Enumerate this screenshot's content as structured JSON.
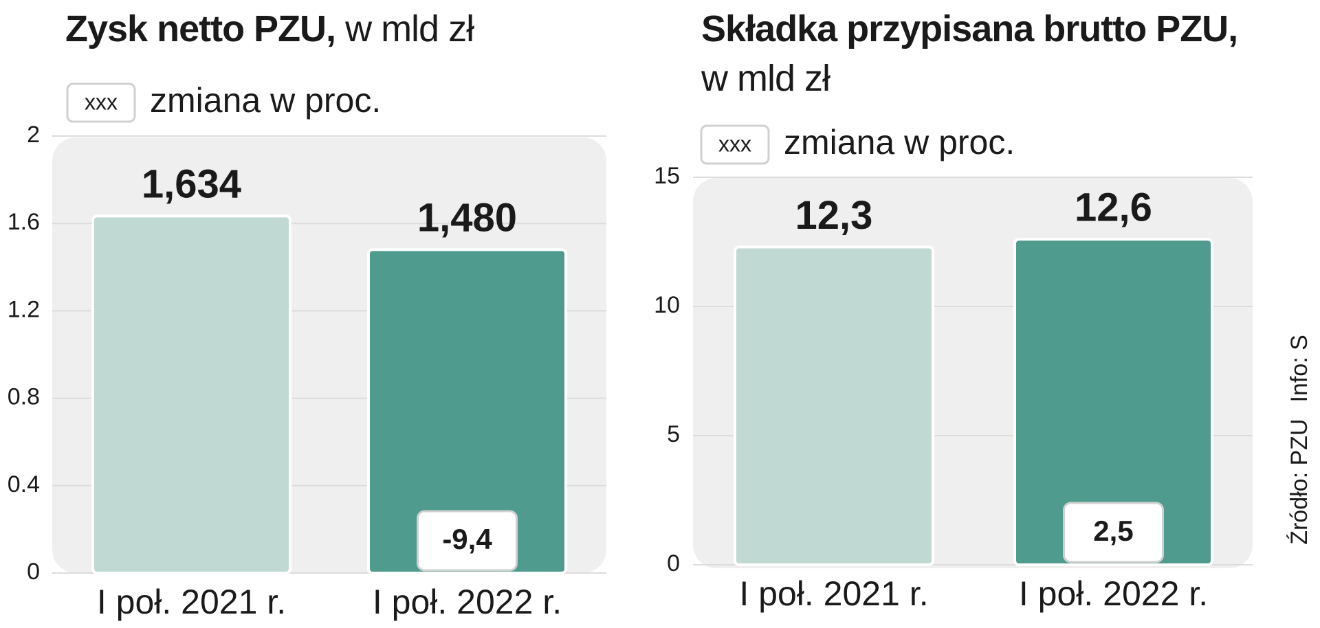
{
  "chart_data": [
    {
      "type": "bar",
      "title": "Zysk netto PZU,",
      "unit": "w mld zł",
      "legend_box": "xxx",
      "legend_label": "zmiana w proc.",
      "categories": [
        "I poł. 2021 r.",
        "I poł. 2022 r."
      ],
      "values": [
        1.634,
        1.48
      ],
      "value_labels": [
        "1,634",
        "1,480"
      ],
      "changes": [
        null,
        -9.4
      ],
      "change_labels": [
        null,
        "-9,4"
      ],
      "colors": [
        "#c0d9d2",
        "#4f9b8e"
      ],
      "ylim": [
        0,
        2
      ],
      "yticks": [
        0,
        0.4,
        0.8,
        1.2,
        1.6,
        2
      ],
      "grid": true
    },
    {
      "type": "bar",
      "title": "Składka przypisana brutto PZU,",
      "unit": "w mld zł",
      "legend_box": "xxx",
      "legend_label": "zmiana w proc.",
      "categories": [
        "I poł. 2021 r.",
        "I poł. 2022 r."
      ],
      "values": [
        12.3,
        12.6
      ],
      "value_labels": [
        "12,3",
        "12,6"
      ],
      "changes": [
        null,
        2.5
      ],
      "change_labels": [
        null,
        "2,5"
      ],
      "colors": [
        "#c0d9d2",
        "#4f9b8e"
      ],
      "ylim": [
        0,
        15
      ],
      "yticks": [
        0,
        5,
        10,
        15
      ],
      "grid": true
    }
  ],
  "source": "Źródło: PZU",
  "credit": "Info: S"
}
